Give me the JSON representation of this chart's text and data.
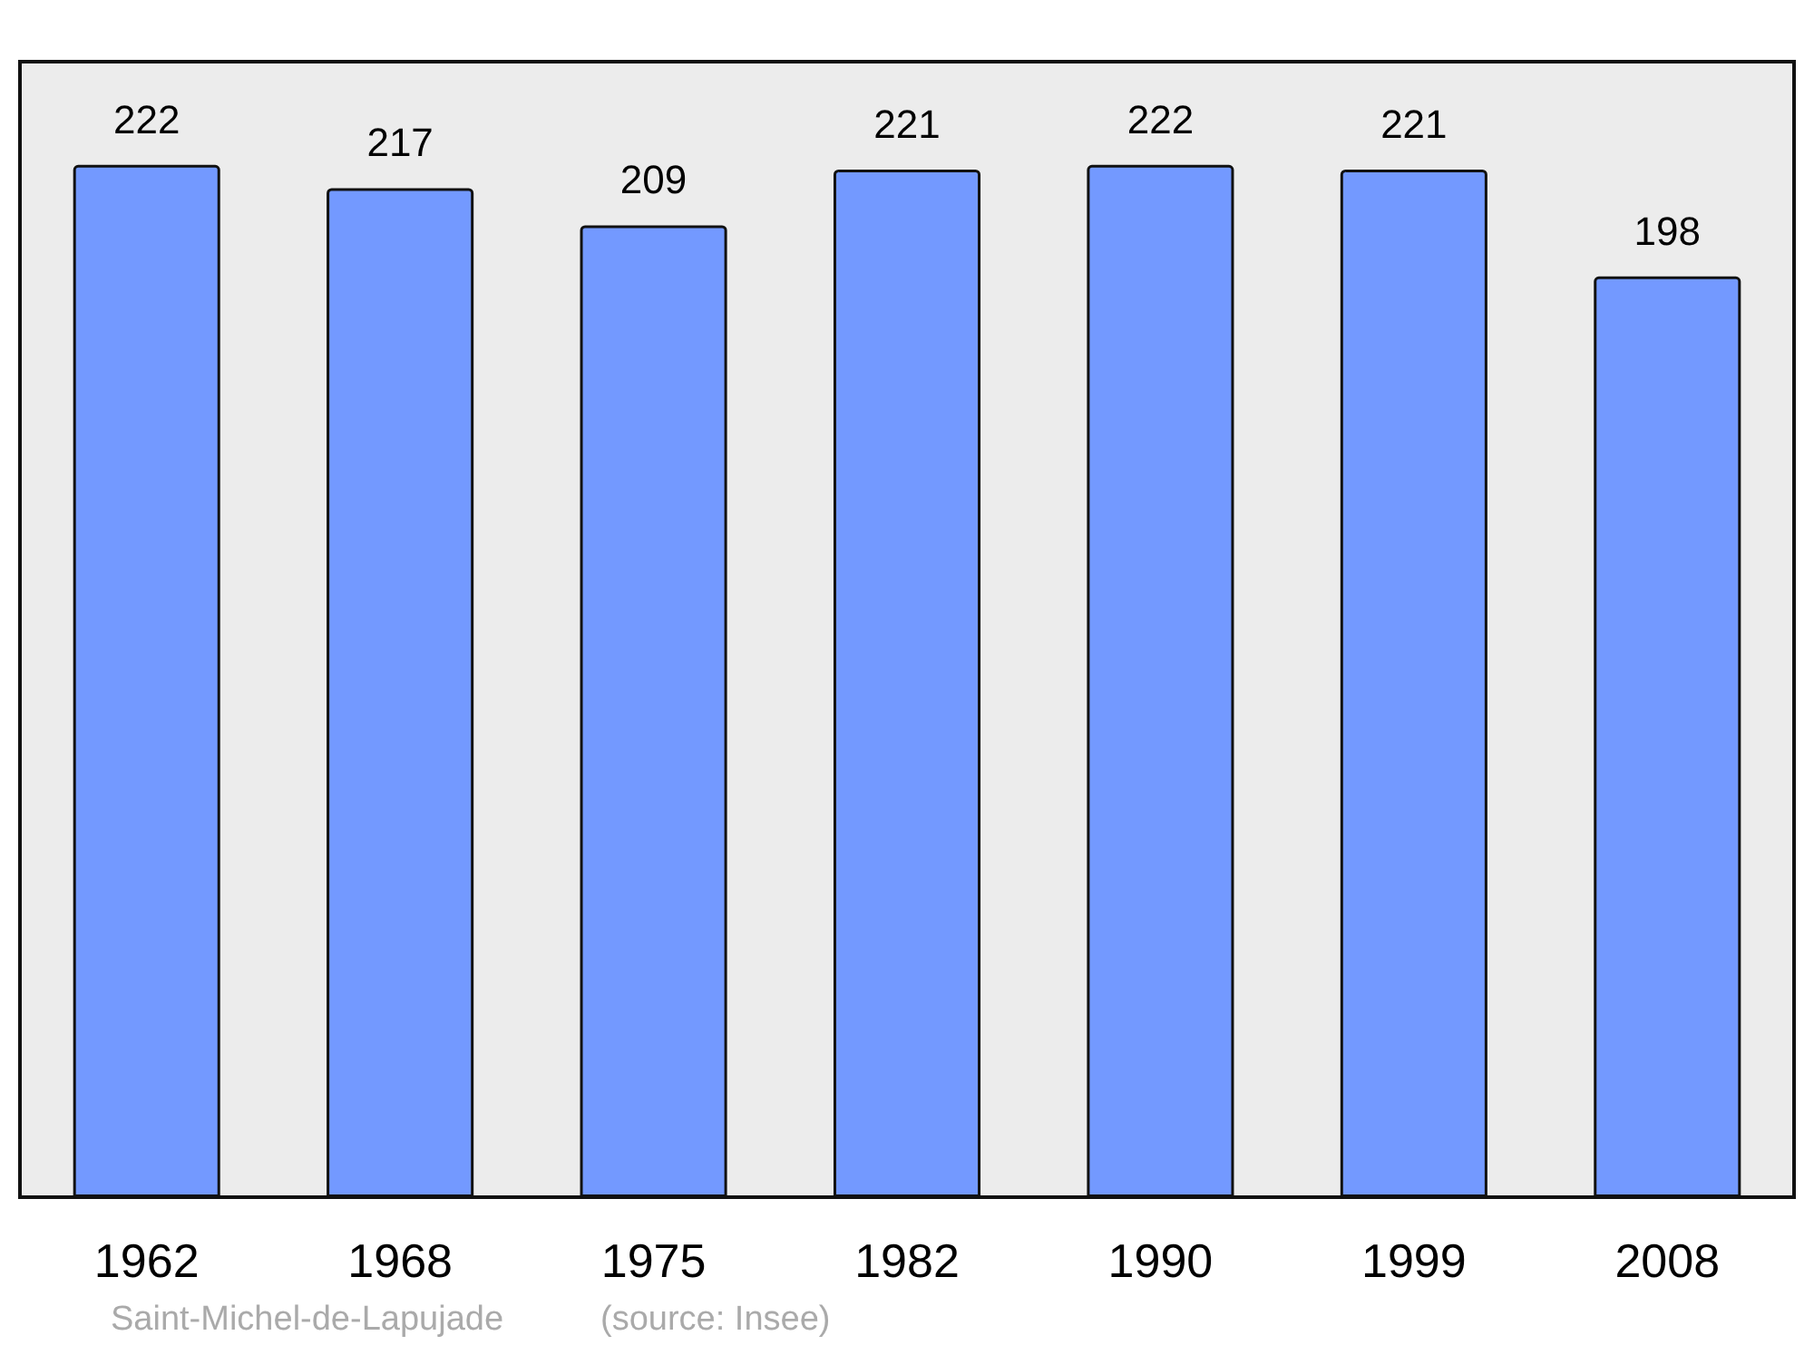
{
  "chart_data": {
    "type": "bar",
    "categories": [
      "1962",
      "1968",
      "1975",
      "1982",
      "1990",
      "1999",
      "2008"
    ],
    "values": [
      222,
      217,
      209,
      221,
      222,
      221,
      198
    ],
    "color": "#7399ff",
    "data_labels": true,
    "annotations": [
      "Saint-Michel-de-Lapujade",
      "(source: Insee)"
    ]
  }
}
